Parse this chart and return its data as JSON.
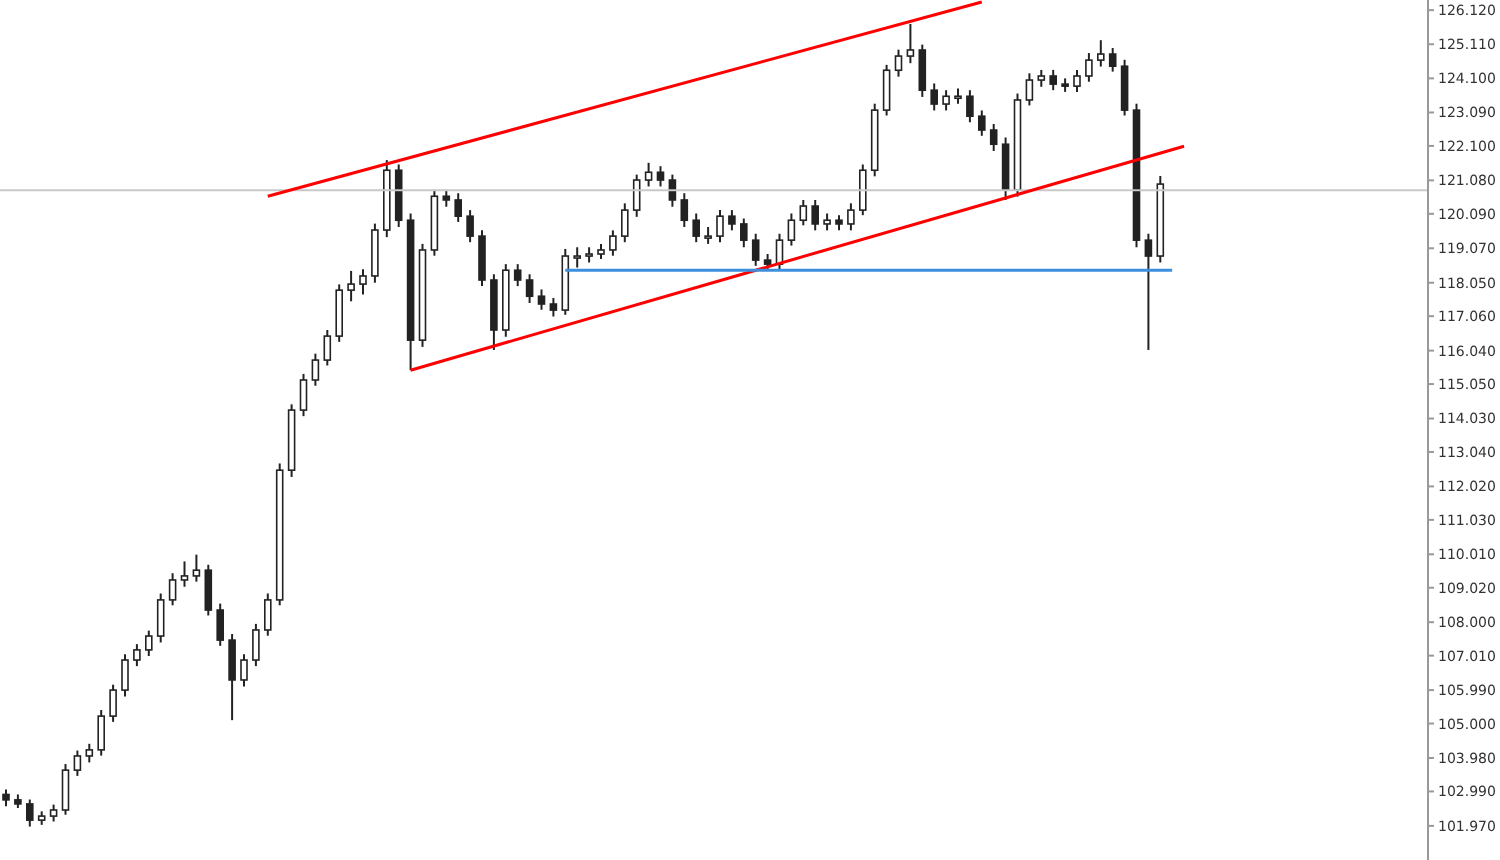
{
  "chart_data": {
    "type": "candlestick",
    "categories": [
      null,
      null,
      null,
      null,
      null,
      null,
      null,
      null,
      null,
      null,
      null,
      null,
      null,
      null,
      null,
      null,
      null,
      null,
      null,
      null,
      null,
      null,
      null,
      null,
      null,
      null,
      null,
      null,
      null,
      null,
      null,
      null,
      null,
      null,
      null,
      null,
      null,
      null,
      null,
      null,
      null,
      null,
      null,
      null,
      null,
      null,
      null,
      null,
      null,
      null,
      null,
      null,
      null,
      null,
      null,
      null,
      null,
      null,
      null,
      null,
      null,
      null,
      null,
      null,
      null,
      null,
      null,
      null,
      null,
      null,
      null,
      null,
      null,
      null,
      null,
      null,
      null,
      null,
      null,
      null,
      null,
      null,
      null,
      null,
      null,
      null,
      null,
      null,
      null,
      null,
      null,
      null,
      null,
      null,
      null,
      null,
      null,
      null,
      null,
      null,
      null,
      null,
      null,
      null,
      null,
      null,
      null,
      null,
      null,
      null,
      null,
      null,
      null,
      null,
      null,
      null,
      null,
      null,
      null,
      null
    ],
    "color": "#222222",
    "ohlc": [
      [
        102.9,
        103.05,
        102.55,
        102.74
      ],
      [
        102.74,
        102.9,
        102.5,
        102.62
      ],
      [
        102.62,
        102.75,
        101.95,
        102.14
      ],
      [
        102.14,
        102.4,
        102.0,
        102.26
      ],
      [
        102.26,
        102.6,
        102.1,
        102.44
      ],
      [
        102.44,
        103.8,
        102.3,
        103.62
      ],
      [
        103.62,
        104.2,
        103.45,
        104.04
      ],
      [
        104.04,
        104.4,
        103.85,
        104.22
      ],
      [
        104.22,
        105.4,
        104.05,
        105.22
      ],
      [
        105.22,
        106.15,
        105.05,
        105.99
      ],
      [
        105.99,
        107.05,
        105.8,
        106.88
      ],
      [
        106.88,
        107.35,
        106.7,
        107.18
      ],
      [
        107.18,
        107.75,
        107.0,
        107.59
      ],
      [
        107.59,
        108.85,
        107.4,
        108.66
      ],
      [
        108.66,
        109.45,
        108.5,
        109.25
      ],
      [
        109.25,
        109.8,
        109.05,
        109.37
      ],
      [
        109.37,
        110.0,
        109.2,
        109.54
      ],
      [
        109.54,
        109.7,
        108.2,
        108.36
      ],
      [
        108.36,
        108.55,
        107.3,
        107.47
      ],
      [
        107.47,
        107.65,
        105.1,
        106.29
      ],
      [
        106.29,
        107.05,
        106.1,
        106.88
      ],
      [
        106.88,
        107.95,
        106.7,
        107.77
      ],
      [
        107.77,
        108.85,
        107.6,
        108.66
      ],
      [
        108.66,
        112.7,
        108.5,
        112.5
      ],
      [
        112.5,
        114.45,
        112.3,
        114.28
      ],
      [
        114.28,
        115.35,
        114.1,
        115.17
      ],
      [
        115.17,
        115.95,
        115.0,
        115.76
      ],
      [
        115.76,
        116.65,
        115.6,
        116.47
      ],
      [
        116.47,
        118.0,
        116.3,
        117.83
      ],
      [
        117.83,
        118.4,
        117.5,
        118.01
      ],
      [
        118.01,
        118.45,
        117.7,
        118.25
      ],
      [
        118.25,
        119.8,
        118.05,
        119.61
      ],
      [
        119.61,
        121.68,
        119.4,
        121.38
      ],
      [
        121.38,
        121.55,
        119.7,
        119.9
      ],
      [
        119.9,
        120.1,
        115.46,
        116.35
      ],
      [
        116.35,
        119.2,
        116.15,
        119.02
      ],
      [
        119.02,
        120.8,
        118.85,
        120.61
      ],
      [
        120.61,
        120.8,
        120.3,
        120.5
      ],
      [
        120.5,
        120.7,
        119.85,
        120.02
      ],
      [
        120.02,
        120.2,
        119.25,
        119.43
      ],
      [
        119.43,
        119.6,
        117.95,
        118.13
      ],
      [
        118.13,
        118.3,
        116.06,
        116.65
      ],
      [
        116.65,
        118.6,
        116.45,
        118.42
      ],
      [
        118.42,
        118.6,
        117.95,
        118.13
      ],
      [
        118.13,
        118.3,
        117.45,
        117.65
      ],
      [
        117.65,
        117.85,
        117.25,
        117.42
      ],
      [
        117.42,
        117.6,
        117.05,
        117.24
      ],
      [
        117.24,
        119.05,
        117.1,
        118.84
      ],
      [
        118.84,
        119.1,
        118.5,
        118.84
      ],
      [
        118.84,
        119.1,
        118.65,
        118.9
      ],
      [
        118.9,
        119.2,
        118.75,
        119.02
      ],
      [
        119.02,
        119.6,
        118.85,
        119.43
      ],
      [
        119.43,
        120.4,
        119.25,
        120.2
      ],
      [
        120.2,
        121.25,
        120.0,
        121.09
      ],
      [
        121.09,
        121.6,
        120.9,
        121.32
      ],
      [
        121.32,
        121.5,
        120.9,
        121.09
      ],
      [
        121.09,
        121.25,
        120.3,
        120.5
      ],
      [
        120.5,
        120.7,
        119.7,
        119.9
      ],
      [
        119.9,
        120.1,
        119.25,
        119.43
      ],
      [
        119.43,
        119.7,
        119.2,
        119.43
      ],
      [
        119.43,
        120.2,
        119.25,
        120.02
      ],
      [
        120.02,
        120.2,
        119.6,
        119.79
      ],
      [
        119.79,
        119.95,
        119.1,
        119.31
      ],
      [
        119.31,
        119.5,
        118.55,
        118.72
      ],
      [
        118.72,
        118.9,
        118.42,
        118.6
      ],
      [
        118.6,
        119.5,
        118.45,
        119.31
      ],
      [
        119.31,
        120.1,
        119.15,
        119.9
      ],
      [
        119.9,
        120.5,
        119.75,
        120.32
      ],
      [
        120.32,
        120.5,
        119.6,
        119.79
      ],
      [
        119.79,
        120.1,
        119.6,
        119.9
      ],
      [
        119.9,
        120.05,
        119.6,
        119.79
      ],
      [
        119.79,
        120.4,
        119.6,
        120.2
      ],
      [
        120.2,
        121.55,
        120.05,
        121.38
      ],
      [
        121.38,
        123.35,
        121.2,
        123.16
      ],
      [
        123.16,
        124.5,
        123.0,
        124.34
      ],
      [
        124.34,
        124.95,
        124.15,
        124.76
      ],
      [
        124.76,
        125.71,
        124.55,
        124.94
      ],
      [
        124.94,
        125.1,
        123.55,
        123.75
      ],
      [
        123.75,
        123.95,
        123.15,
        123.34
      ],
      [
        123.34,
        123.75,
        123.15,
        123.57
      ],
      [
        123.57,
        123.8,
        123.35,
        123.57
      ],
      [
        123.57,
        123.75,
        122.8,
        122.98
      ],
      [
        122.98,
        123.15,
        122.4,
        122.57
      ],
      [
        122.57,
        122.75,
        121.95,
        122.15
      ],
      [
        122.15,
        122.35,
        120.5,
        120.79
      ],
      [
        120.79,
        123.65,
        120.6,
        123.46
      ],
      [
        123.46,
        124.25,
        123.3,
        124.05
      ],
      [
        124.05,
        124.35,
        123.85,
        124.17
      ],
      [
        124.17,
        124.35,
        123.75,
        123.93
      ],
      [
        123.93,
        124.1,
        123.7,
        123.87
      ],
      [
        123.87,
        124.35,
        123.7,
        124.17
      ],
      [
        124.17,
        124.85,
        124.0,
        124.64
      ],
      [
        124.64,
        125.23,
        124.45,
        124.82
      ],
      [
        124.82,
        125.0,
        124.3,
        124.46
      ],
      [
        124.46,
        124.65,
        123.0,
        123.16
      ],
      [
        123.16,
        123.35,
        119.1,
        119.31
      ],
      [
        119.31,
        119.5,
        116.06,
        118.84
      ],
      [
        118.84,
        121.21,
        118.65,
        120.97
      ],
      null,
      null,
      null,
      null,
      null,
      null,
      null,
      null,
      null,
      null,
      null,
      null,
      null,
      null,
      null,
      null,
      null,
      null,
      null,
      null,
      null,
      null
    ],
    "series": [
      {
        "type": "line",
        "color": "#ff0000",
        "values": [
          null,
          null,
          null,
          null,
          null,
          null,
          null,
          null,
          null,
          null,
          null,
          null,
          null,
          null,
          null,
          null,
          null,
          null,
          null,
          null,
          null,
          null,
          120.61,
          null,
          null,
          null,
          null,
          null,
          null,
          null,
          null,
          null,
          null,
          null,
          null,
          null,
          null,
          null,
          null,
          null,
          null,
          null,
          null,
          null,
          null,
          null,
          null,
          null,
          null,
          null,
          null,
          null,
          null,
          null,
          null,
          null,
          null,
          null,
          null,
          null,
          null,
          null,
          null,
          null,
          null,
          null,
          null,
          null,
          null,
          null,
          null,
          null,
          null,
          null,
          null,
          null,
          null,
          null,
          null,
          null,
          null,
          null,
          126.36,
          null,
          null,
          null,
          null,
          null,
          null,
          null,
          null,
          null,
          null,
          null,
          null,
          null,
          null,
          null,
          null,
          null,
          null,
          null,
          null,
          null,
          null,
          null,
          null,
          null,
          null,
          null,
          null,
          null,
          null,
          null,
          null,
          null,
          null,
          null,
          null,
          null
        ]
      },
      {
        "type": "line",
        "color": "#ff0000",
        "values": [
          null,
          null,
          null,
          null,
          null,
          null,
          null,
          null,
          null,
          null,
          null,
          null,
          null,
          null,
          null,
          null,
          null,
          null,
          null,
          null,
          null,
          null,
          null,
          null,
          null,
          null,
          null,
          null,
          null,
          null,
          null,
          null,
          null,
          null,
          115.46,
          null,
          null,
          null,
          null,
          null,
          null,
          null,
          null,
          null,
          null,
          null,
          null,
          null,
          null,
          null,
          null,
          null,
          null,
          null,
          null,
          null,
          null,
          null,
          null,
          null,
          null,
          null,
          null,
          null,
          null,
          null,
          null,
          null,
          null,
          null,
          null,
          null,
          null,
          null,
          null,
          null,
          null,
          null,
          null,
          null,
          null,
          null,
          null,
          null,
          null,
          null,
          null,
          null,
          null,
          null,
          null,
          null,
          null,
          null,
          null,
          null,
          null,
          null,
          null,
          122.09,
          null,
          null,
          null,
          null,
          null,
          null,
          null,
          null,
          null,
          null,
          null,
          null,
          null,
          null,
          null,
          null,
          null,
          null,
          null,
          null
        ]
      },
      {
        "type": "line",
        "color": "#3c8fde",
        "values": [
          null,
          null,
          null,
          null,
          null,
          null,
          null,
          null,
          null,
          null,
          null,
          null,
          null,
          null,
          null,
          null,
          null,
          null,
          null,
          null,
          null,
          null,
          null,
          null,
          null,
          null,
          null,
          null,
          null,
          null,
          null,
          null,
          null,
          null,
          null,
          null,
          null,
          null,
          null,
          null,
          null,
          null,
          null,
          null,
          null,
          null,
          null,
          118.42,
          null,
          null,
          null,
          null,
          null,
          null,
          null,
          null,
          null,
          null,
          null,
          null,
          null,
          null,
          null,
          null,
          null,
          null,
          null,
          null,
          null,
          null,
          null,
          null,
          null,
          null,
          null,
          null,
          null,
          null,
          null,
          null,
          null,
          null,
          null,
          null,
          null,
          null,
          null,
          null,
          null,
          null,
          null,
          null,
          null,
          null,
          null,
          null,
          null,
          null,
          118.42,
          null,
          null,
          null,
          null,
          null,
          null,
          null,
          null,
          null,
          null,
          null,
          null,
          null,
          null,
          null,
          null,
          null,
          null,
          null,
          null,
          null
        ]
      }
    ],
    "ref_lines": [
      {
        "axis": "y",
        "value": 120.79,
        "color": "#c8c8c8"
      }
    ],
    "ylim": [
      100.96,
      126.42
    ],
    "yticks": [
      {
        "value": 126.12,
        "label": "126.120"
      },
      {
        "value": 125.11,
        "label": "125.110"
      },
      {
        "value": 124.1,
        "label": "124.100"
      },
      {
        "value": 123.09,
        "label": "123.090"
      },
      {
        "value": 122.1,
        "label": "122.100"
      },
      {
        "value": 121.08,
        "label": "121.080"
      },
      {
        "value": 120.09,
        "label": "120.090"
      },
      {
        "value": 119.07,
        "label": "119.070"
      },
      {
        "value": 118.05,
        "label": "118.050"
      },
      {
        "value": 117.06,
        "label": "117.060"
      },
      {
        "value": 116.04,
        "label": "116.040"
      },
      {
        "value": 115.05,
        "label": "115.050"
      },
      {
        "value": 114.03,
        "label": "114.030"
      },
      {
        "value": 113.04,
        "label": "113.040"
      },
      {
        "value": 112.02,
        "label": "112.020"
      },
      {
        "value": 111.03,
        "label": "111.030"
      },
      {
        "value": 110.01,
        "label": "110.010"
      },
      {
        "value": 109.02,
        "label": "109.020"
      },
      {
        "value": 108.0,
        "label": "108.000"
      },
      {
        "value": 107.01,
        "label": "107.010"
      },
      {
        "value": 105.99,
        "label": "105.990"
      },
      {
        "value": 105.0,
        "label": "105.000"
      },
      {
        "value": 103.98,
        "label": "103.980"
      },
      {
        "value": 102.99,
        "label": "102.990"
      },
      {
        "value": 101.97,
        "label": "101.970"
      }
    ],
    "tick_labels": "y"
  }
}
